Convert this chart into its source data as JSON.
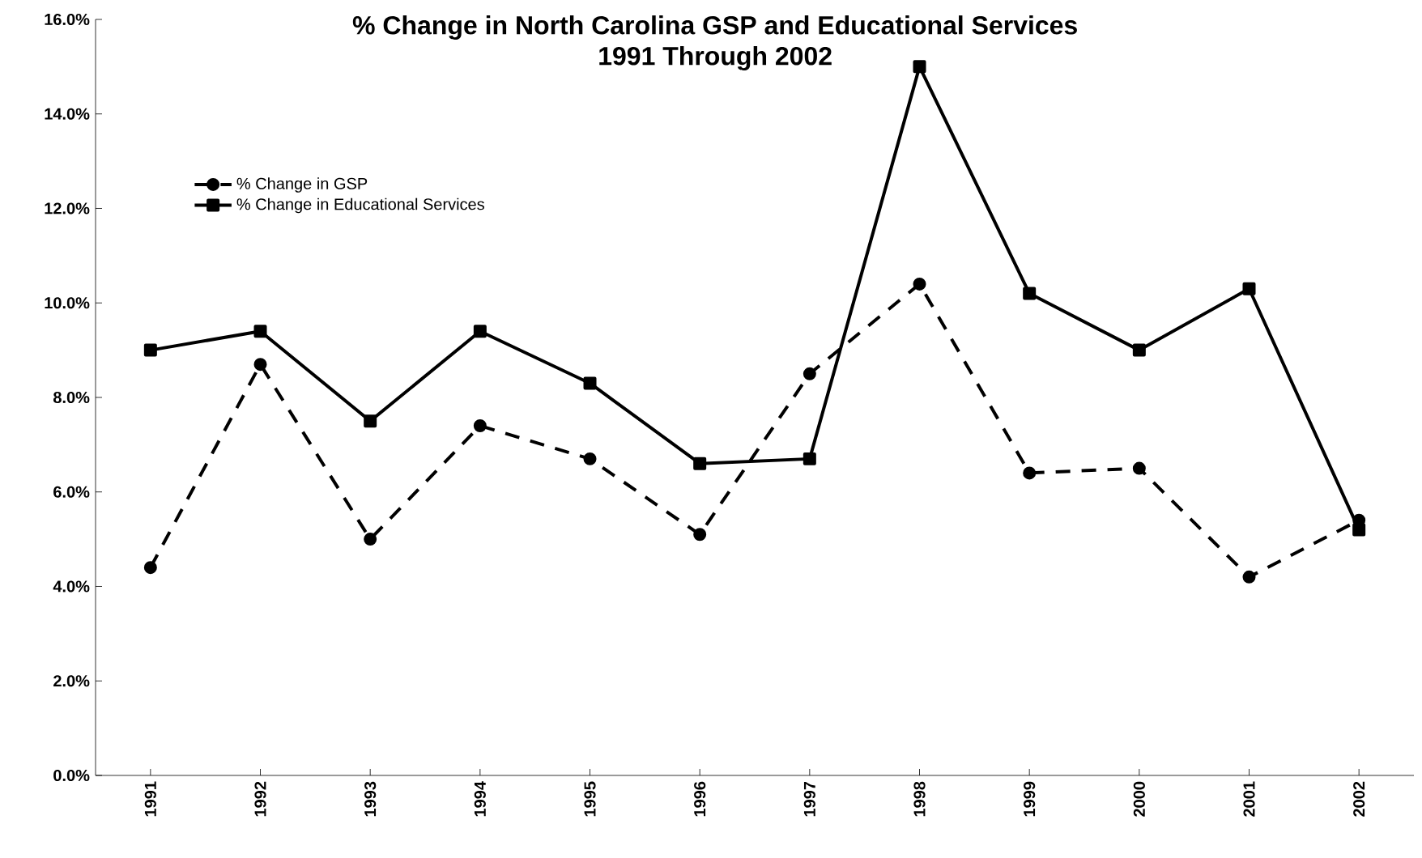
{
  "chart_data": {
    "type": "line",
    "title": "% Change in North Carolina GSP and Educational Services",
    "subtitle": "1991 Through 2002",
    "categories": [
      "1991",
      "1992",
      "1993",
      "1994",
      "1995",
      "1996",
      "1997",
      "1998",
      "1999",
      "2000",
      "2001",
      "2002"
    ],
    "series": [
      {
        "name": "% Change in GSP",
        "color": "#000000",
        "line_style": "dashed",
        "marker": "circle",
        "values": [
          4.4,
          8.7,
          5.0,
          7.4,
          6.7,
          5.1,
          8.5,
          10.4,
          6.4,
          6.5,
          4.2,
          5.4
        ]
      },
      {
        "name": "% Change in Educational Services",
        "color": "#000000",
        "line_style": "solid",
        "marker": "square",
        "values": [
          9.0,
          9.4,
          7.5,
          9.4,
          8.3,
          6.6,
          6.7,
          15.0,
          10.2,
          9.0,
          10.3,
          5.2
        ]
      }
    ],
    "ylim": [
      0,
      16
    ],
    "yticks": [
      {
        "value": 0,
        "label": "0.0%"
      },
      {
        "value": 2,
        "label": "2.0%"
      },
      {
        "value": 4,
        "label": "4.0%"
      },
      {
        "value": 6,
        "label": "6.0%"
      },
      {
        "value": 8,
        "label": "8.0%"
      },
      {
        "value": 10,
        "label": "10.0%"
      },
      {
        "value": 12,
        "label": "12.0%"
      },
      {
        "value": 14,
        "label": "14.0%"
      },
      {
        "value": 16,
        "label": "16.0%"
      }
    ],
    "legend": "top left",
    "grid": false
  }
}
